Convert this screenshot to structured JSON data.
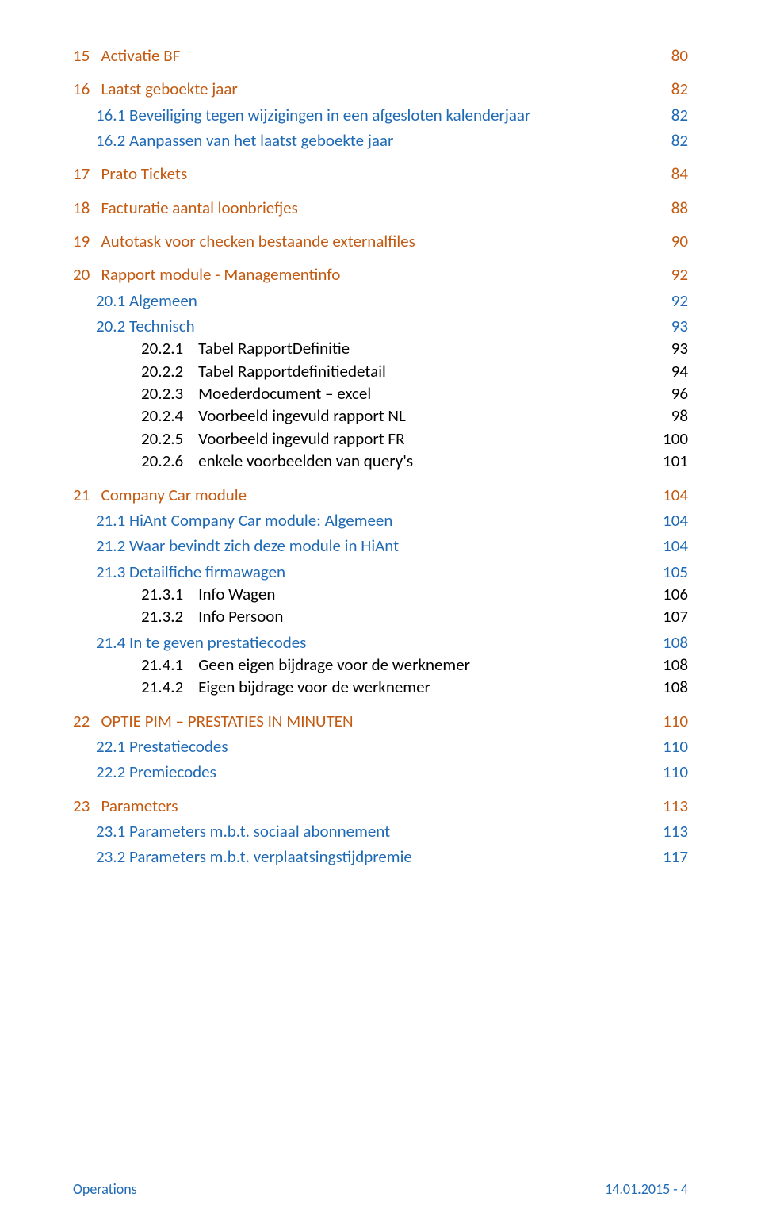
{
  "colors": {
    "level1": "#c35a12",
    "level2": "#1f6ab5",
    "level3": "#000000",
    "footer": "#1f6ab5",
    "background": "#ffffff"
  },
  "typography": {
    "body_fontsize_pt": 16,
    "footer_fontsize_pt": 13,
    "font_family": "Calibri"
  },
  "toc": {
    "entries": [
      {
        "level": 1,
        "label": "15   Activatie BF",
        "page": "80"
      },
      {
        "level": 1,
        "label": "16   Laatst geboekte jaar",
        "page": "82"
      },
      {
        "level": 2,
        "label": "16.1 Beveiliging tegen wijzigingen in een afgesloten kalenderjaar",
        "page": "82"
      },
      {
        "level": 2,
        "label": "16.2 Aanpassen van het laatst geboekte jaar",
        "page": "82"
      },
      {
        "level": 1,
        "label": "17   Prato Tickets",
        "page": "84"
      },
      {
        "level": 1,
        "label": "18   Facturatie aantal loonbriefjes",
        "page": "88"
      },
      {
        "level": 1,
        "label": "19   Autotask voor checken bestaande externalfiles",
        "page": "90"
      },
      {
        "level": 1,
        "label": "20   Rapport module - Managementinfo",
        "page": "92"
      },
      {
        "level": 2,
        "label": "20.1 Algemeen",
        "page": "92"
      },
      {
        "level": 2,
        "label": "20.2 Technisch",
        "page": "93"
      },
      {
        "level": 3,
        "label": "20.2.1    Tabel RapportDefinitie",
        "page": "93"
      },
      {
        "level": 3,
        "label": "20.2.2    Tabel Rapportdefinitiedetail",
        "page": "94"
      },
      {
        "level": 3,
        "label": "20.2.3    Moederdocument – excel",
        "page": "96"
      },
      {
        "level": 3,
        "label": "20.2.4    Voorbeeld ingevuld rapport NL",
        "page": "98"
      },
      {
        "level": 3,
        "label": "20.2.5    Voorbeeld ingevuld rapport FR",
        "page": "100"
      },
      {
        "level": 3,
        "label": "20.2.6    enkele voorbeelden van query's",
        "page": "101"
      },
      {
        "level": 1,
        "label": "21   Company Car module",
        "page": "104"
      },
      {
        "level": 2,
        "label": "21.1 HiAnt Company Car module: Algemeen",
        "page": "104"
      },
      {
        "level": 2,
        "label": "21.2 Waar bevindt zich deze module in HiAnt",
        "page": "104"
      },
      {
        "level": 2,
        "label": "21.3 Detailfiche firmawagen",
        "page": "105"
      },
      {
        "level": 3,
        "label": "21.3.1    Info Wagen",
        "page": "106"
      },
      {
        "level": 3,
        "label": "21.3.2    Info Persoon",
        "page": "107"
      },
      {
        "level": 2,
        "label": "21.4 In te geven prestatiecodes",
        "page": "108"
      },
      {
        "level": 3,
        "label": "21.4.1    Geen eigen bijdrage voor de werknemer",
        "page": "108"
      },
      {
        "level": 3,
        "label": "21.4.2    Eigen bijdrage voor de werknemer",
        "page": "108"
      },
      {
        "level": 1,
        "label": "22   OPTIE PIM – PRESTATIES IN MINUTEN",
        "page": "110"
      },
      {
        "level": 2,
        "label": "22.1 Prestatiecodes",
        "page": "110"
      },
      {
        "level": 2,
        "label": "22.2 Premiecodes",
        "page": "110"
      },
      {
        "level": 1,
        "label": "23   Parameters",
        "page": "113"
      },
      {
        "level": 2,
        "label": "23.1 Parameters m.b.t. sociaal abonnement",
        "page": "113"
      },
      {
        "level": 2,
        "label": "23.2 Parameters m.b.t. verplaatsingstijdpremie",
        "page": "117"
      }
    ]
  },
  "footer": {
    "left": "Operations",
    "right": "14.01.2015 - 4"
  }
}
